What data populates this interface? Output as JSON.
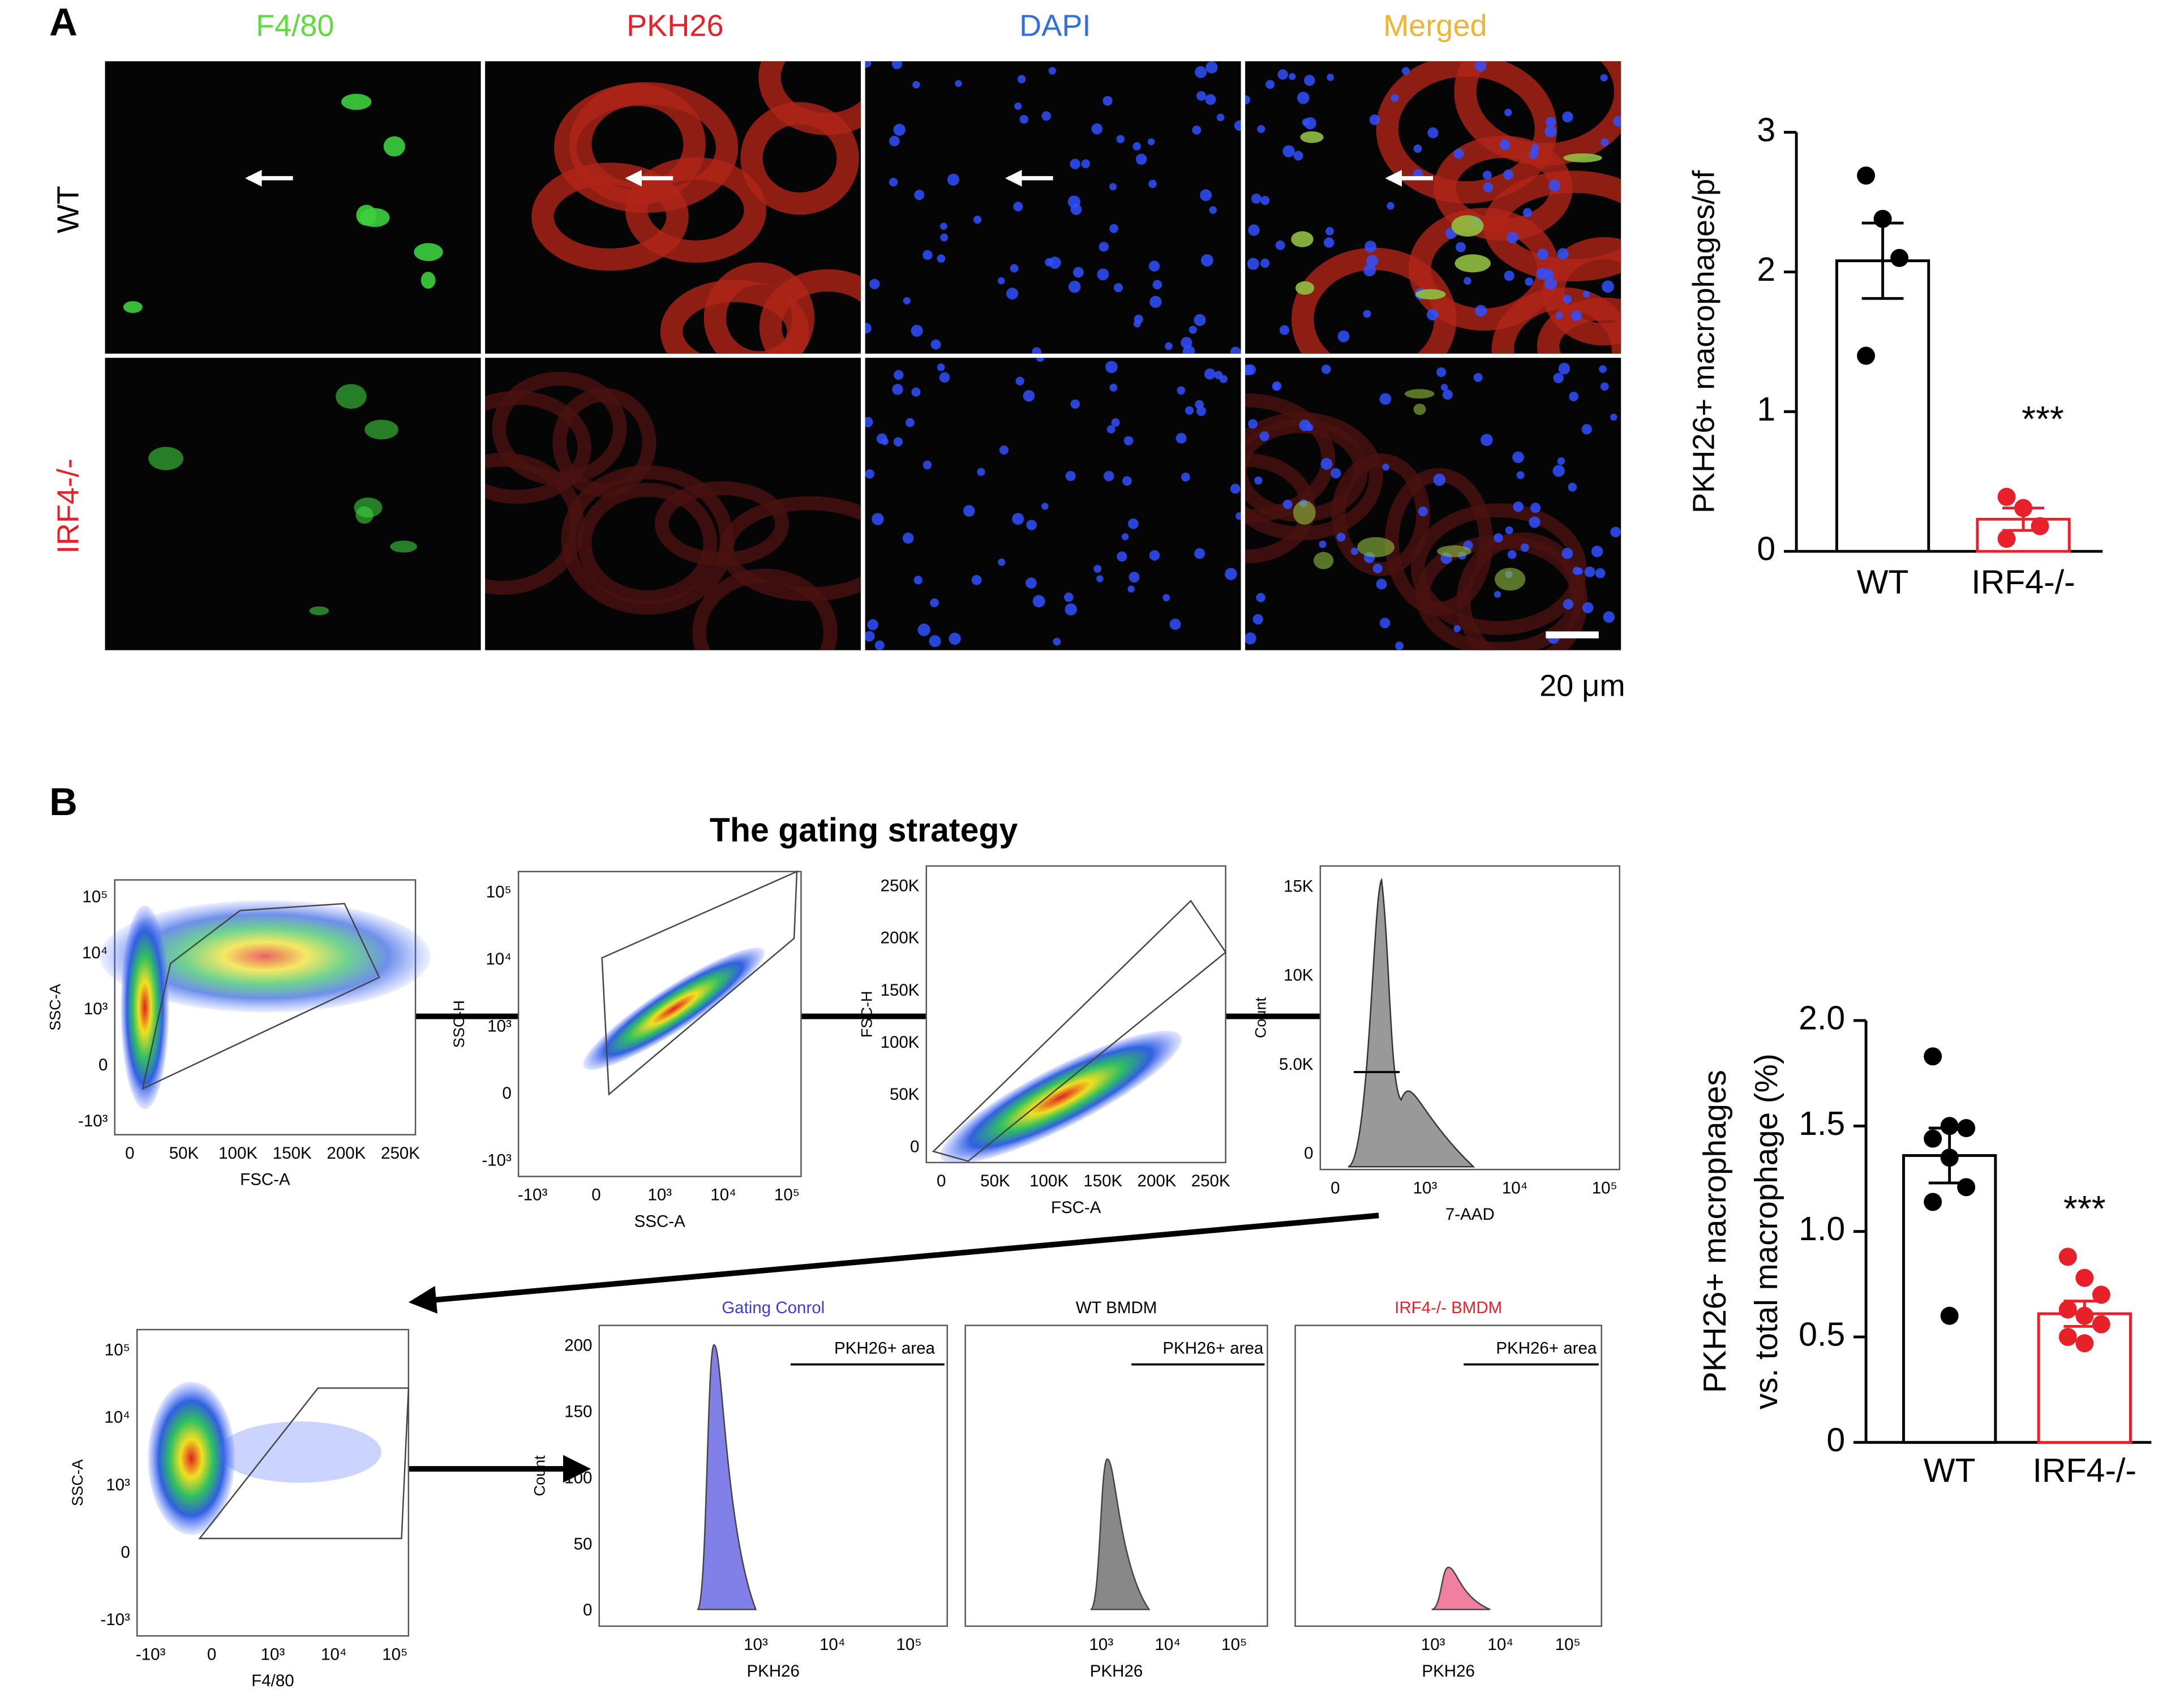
{
  "panel_a": {
    "label": "A",
    "columns": [
      "F4/80",
      "PKH26",
      "DAPI",
      "Merged"
    ],
    "rows": [
      "WT",
      "IRF4-/-"
    ],
    "scale_bar": "20 μm"
  },
  "panel_b": {
    "label": "B",
    "gating_title": "The gating strategy",
    "flow_plots": [
      {
        "x_label": "FSC-A",
        "y_label": "SSC-A",
        "x_ticks": [
          "0",
          "50K",
          "100K",
          "150K",
          "200K",
          "250K"
        ],
        "y_ticks": [
          "-10³",
          "0",
          "10³",
          "10⁴",
          "10⁵"
        ]
      },
      {
        "x_label": "SSC-A",
        "y_label": "SSC-H",
        "x_ticks": [
          "-10³",
          "0",
          "10³",
          "10⁴",
          "10⁵"
        ],
        "y_ticks": [
          "-10³",
          "0",
          "10³",
          "10⁴",
          "10⁵"
        ]
      },
      {
        "x_label": "FSC-A",
        "y_label": "FSC-H",
        "x_ticks": [
          "0",
          "50K",
          "100K",
          "150K",
          "200K",
          "250K"
        ],
        "y_ticks": [
          "0",
          "50K",
          "100K",
          "150K",
          "200K",
          "250K"
        ]
      },
      {
        "x_label": "7-AAD",
        "y_label": "Count",
        "x_ticks": [
          "0",
          "10³",
          "10⁴",
          "10⁵"
        ],
        "y_ticks": [
          "0",
          "5.0K",
          "10K",
          "15K"
        ]
      },
      {
        "x_label": "F4/80",
        "y_label": "SSC-A",
        "x_ticks": [
          "-10³",
          "0",
          "10³",
          "10⁴",
          "10⁵"
        ],
        "y_ticks": [
          "-10³",
          "0",
          "10³",
          "10⁴",
          "10⁵"
        ]
      },
      {
        "title": "Gating Conrol",
        "gate": "PKH26+ area",
        "x_label": "PKH26",
        "y_label": "Count",
        "x_ticks": [
          "10³",
          "10⁴",
          "10⁵"
        ],
        "y_ticks": [
          "0",
          "50",
          "100",
          "150",
          "200"
        ]
      },
      {
        "title": "WT BMDM",
        "gate": "PKH26+ area",
        "x_label": "PKH26",
        "x_ticks": [
          "10³",
          "10⁴",
          "10⁵"
        ]
      },
      {
        "title": "IRF4-/- BMDM",
        "gate": "PKH26+ area",
        "x_label": "PKH26",
        "x_ticks": [
          "10³",
          "10⁴",
          "10⁵"
        ]
      }
    ]
  },
  "chart_data": [
    {
      "type": "bar",
      "y_label": "PKH26+ macrophages/pf",
      "categories": [
        "WT",
        "IRF4-/-"
      ],
      "values": [
        2.08,
        0.23
      ],
      "errors": [
        0.27,
        0.08
      ],
      "points": [
        [
          2.69,
          2.38,
          2.1,
          1.4
        ],
        [
          0.39,
          0.31,
          0.18,
          0.09
        ]
      ],
      "colors": [
        "#000000",
        "#e8202a"
      ],
      "annotation": "***",
      "ylim": [
        0,
        3
      ],
      "yticks": [
        0,
        1,
        2,
        3
      ]
    },
    {
      "type": "bar",
      "y_label": [
        "PKH26+ macrophages",
        "vs. total macrophage (%)"
      ],
      "categories": [
        "WT",
        "IRF4-/-"
      ],
      "values": [
        1.36,
        0.61
      ],
      "errors": [
        0.13,
        0.06
      ],
      "points": [
        [
          1.83,
          1.5,
          1.49,
          1.44,
          1.35,
          1.21,
          1.14,
          0.6
        ],
        [
          0.88,
          0.78,
          0.7,
          0.63,
          0.6,
          0.56,
          0.5,
          0.47
        ]
      ],
      "colors": [
        "#000000",
        "#e8202a"
      ],
      "annotation": "***",
      "ylim": [
        0,
        2
      ],
      "yticks": [
        0,
        0.5,
        {
          "value": 1,
          "label": "1.0"
        },
        1.5,
        {
          "value": 2,
          "label": "2.0"
        }
      ]
    }
  ]
}
